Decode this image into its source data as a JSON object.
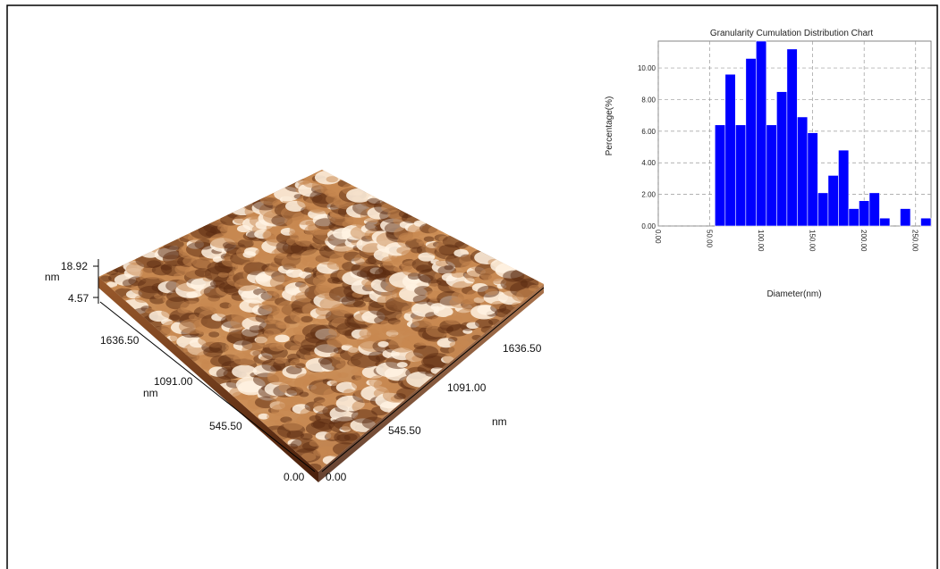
{
  "surface": {
    "z_max_label": "18.92",
    "z_unit_label": "nm",
    "z_min_label": "4.57",
    "left_axis_ticks": [
      "1636.50",
      "1091.00",
      "545.50",
      "0.00"
    ],
    "left_axis_unit": "nm",
    "right_axis_ticks": [
      "0.00",
      "545.50",
      "1091.00",
      "1636.50"
    ],
    "right_axis_unit": "nm",
    "colors": {
      "low": "#5a2a10",
      "mid": "#c8884f",
      "high": "#fff2e2"
    }
  },
  "chart_data": {
    "type": "bar",
    "title": "Granularity Cumulation Distribution  Chart",
    "xlabel": "Diameter(nm)",
    "ylabel": "Percentage(%)",
    "xlim": [
      0,
      265
    ],
    "ylim": [
      0,
      11.7
    ],
    "bar_width": 10,
    "x_ticks": [
      0,
      50,
      100,
      150,
      200,
      250
    ],
    "x_tick_labels": [
      "0.00",
      "50.00",
      "100.00",
      "150.00",
      "200.00",
      "250.00"
    ],
    "y_ticks": [
      0,
      2,
      4,
      6,
      8,
      10
    ],
    "y_tick_labels": [
      "0.00",
      "2.00",
      "4.00",
      "6.00",
      "8.00",
      "10.00"
    ],
    "grid": true,
    "bar_color": "#0000ff",
    "bars": [
      {
        "x": 60,
        "value": 6.4
      },
      {
        "x": 70,
        "value": 9.6
      },
      {
        "x": 80,
        "value": 6.4
      },
      {
        "x": 90,
        "value": 10.6
      },
      {
        "x": 100,
        "value": 11.7
      },
      {
        "x": 110,
        "value": 6.4
      },
      {
        "x": 120,
        "value": 8.5
      },
      {
        "x": 130,
        "value": 11.2
      },
      {
        "x": 140,
        "value": 6.9
      },
      {
        "x": 150,
        "value": 5.9
      },
      {
        "x": 160,
        "value": 2.1
      },
      {
        "x": 170,
        "value": 3.2
      },
      {
        "x": 180,
        "value": 4.8
      },
      {
        "x": 190,
        "value": 1.1
      },
      {
        "x": 200,
        "value": 1.6
      },
      {
        "x": 210,
        "value": 2.1
      },
      {
        "x": 220,
        "value": 0.5
      },
      {
        "x": 240,
        "value": 1.1
      },
      {
        "x": 260,
        "value": 0.5
      }
    ]
  }
}
